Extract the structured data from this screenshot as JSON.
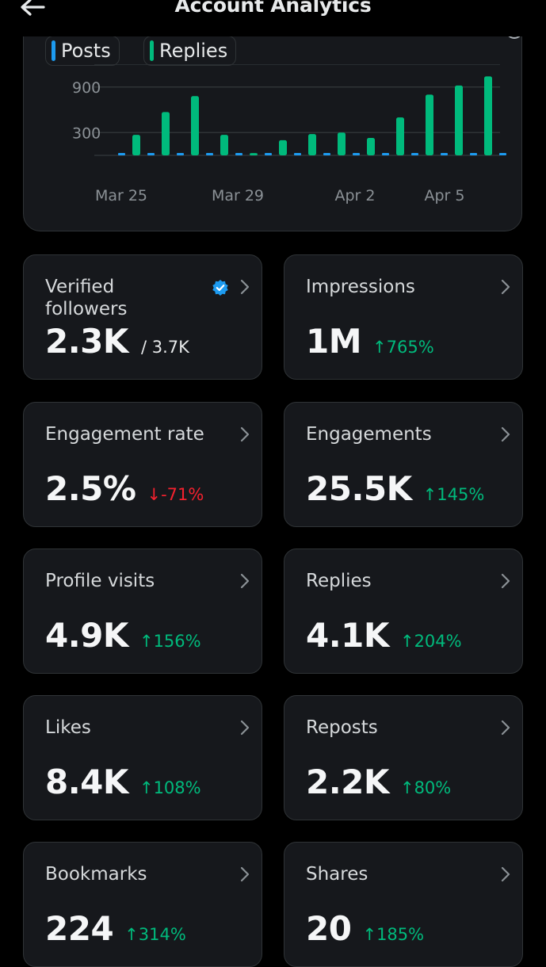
{
  "header": {
    "title": "Account Analytics",
    "back_icon": "arrow-left-icon"
  },
  "legend": [
    {
      "name": "Posts",
      "color": "#1d9bf0"
    },
    {
      "name": "Replies",
      "color": "#00ba7c"
    }
  ],
  "chart_data": {
    "type": "bar",
    "series": [
      {
        "name": "Posts",
        "color": "#1d9bf0",
        "values": [
          5,
          5,
          10,
          5,
          0,
          0,
          0,
          0,
          0,
          0,
          0,
          0,
          5,
          5,
          5,
          5
        ]
      },
      {
        "name": "Replies",
        "color": "#00ba7c",
        "values": [
          270,
          570,
          780,
          270,
          30,
          200,
          280,
          300,
          230,
          500,
          800,
          920,
          1040,
          0,
          0,
          0
        ]
      }
    ],
    "x_ticks": [
      "Mar 25",
      "Mar 29",
      "Apr 2",
      "Apr 5"
    ],
    "y_ticks": [
      "900",
      "300"
    ],
    "ylim": [
      0,
      1200
    ],
    "grid": true
  },
  "cards": [
    {
      "label": "Verified followers",
      "value": "2.3K",
      "sub": "/ 3.7K",
      "change": "",
      "direction": "",
      "badge": "verified-badge-icon"
    },
    {
      "label": "Impressions",
      "value": "1M",
      "change": "765%",
      "direction": "up"
    },
    {
      "label": "Engagement rate",
      "value": "2.5%",
      "change": "-71%",
      "direction": "down"
    },
    {
      "label": "Engagements",
      "value": "25.5K",
      "change": "145%",
      "direction": "up"
    },
    {
      "label": "Profile visits",
      "value": "4.9K",
      "change": "156%",
      "direction": "up"
    },
    {
      "label": "Replies",
      "value": "4.1K",
      "change": "204%",
      "direction": "up"
    },
    {
      "label": "Likes",
      "value": "8.4K",
      "change": "108%",
      "direction": "up"
    },
    {
      "label": "Reposts",
      "value": "2.2K",
      "change": "80%",
      "direction": "up"
    },
    {
      "label": "Bookmarks",
      "value": "224",
      "change": "314%",
      "direction": "up"
    },
    {
      "label": "Shares",
      "value": "20",
      "change": "185%",
      "direction": "up"
    }
  ],
  "arrows": {
    "up": "↑",
    "down": "↓"
  }
}
